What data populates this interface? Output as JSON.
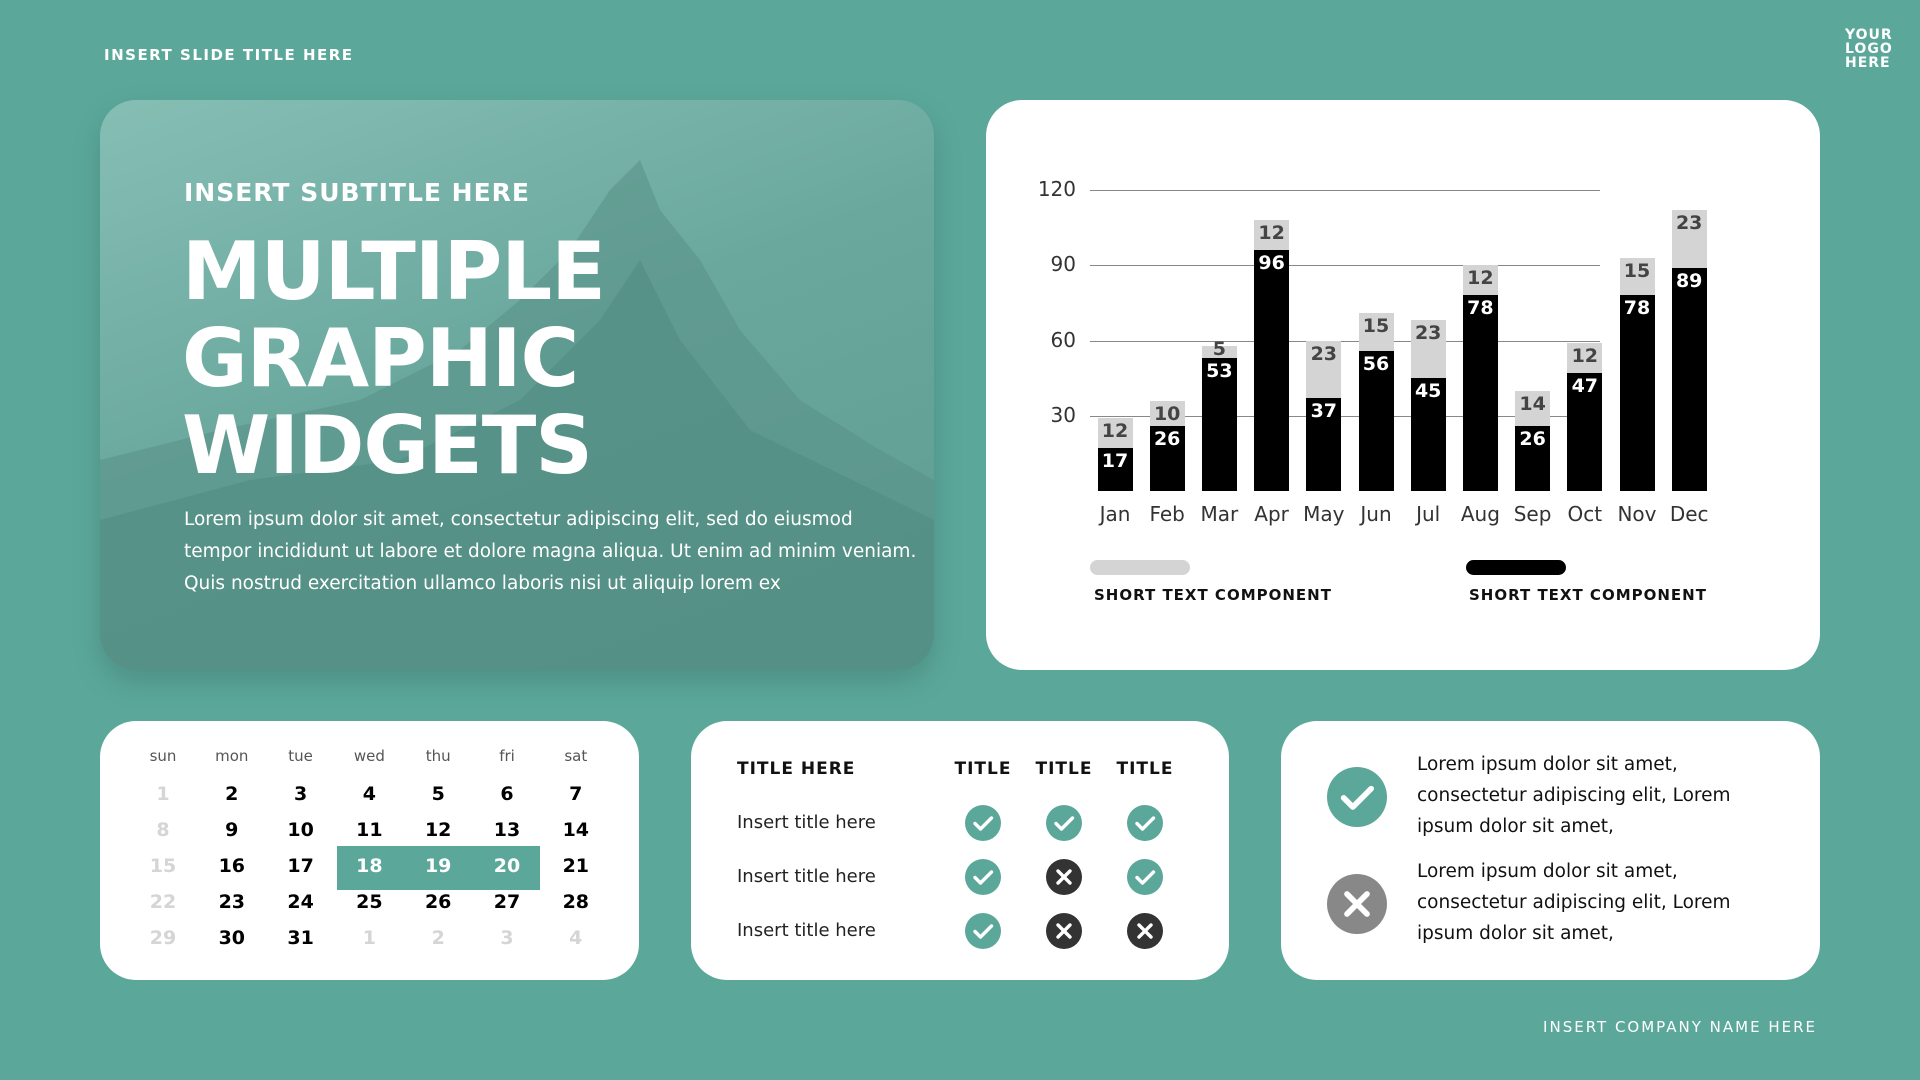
{
  "header": {
    "slide_title": "INSERT SLIDE TITLE HERE",
    "logo": [
      "YOUR",
      "LOGO",
      "HERE"
    ]
  },
  "footer": {
    "company": "INSERT COMPANY NAME HERE"
  },
  "hero": {
    "subtitle": "INSERT SUBTITLE HERE",
    "title_lines": [
      "MULTIPLE",
      "GRAPHIC",
      "WIDGETS"
    ],
    "paragraph_lines": [
      "Lorem ipsum dolor sit amet, consectetur adipiscing elit, sed do eiusmod",
      "tempor incididunt ut labore et dolore magna aliqua. Ut enim ad minim veniam.",
      "Quis nostrud exercitation ullamco laboris nisi ut aliquip lorem ex"
    ]
  },
  "chart_data": {
    "type": "bar",
    "stacked": true,
    "categories": [
      "Jan",
      "Feb",
      "Mar",
      "Apr",
      "May",
      "Jun",
      "Jul",
      "Aug",
      "Sep",
      "Oct",
      "Nov",
      "Dec"
    ],
    "series": [
      {
        "name": "SHORT TEXT COMPONENT",
        "color": "#000000",
        "values": [
          17,
          26,
          53,
          96,
          37,
          56,
          45,
          78,
          26,
          47,
          78,
          89
        ]
      },
      {
        "name": "SHORT TEXT COMPONENT",
        "color": "#d4d4d4",
        "values": [
          12,
          10,
          5,
          12,
          23,
          15,
          23,
          12,
          14,
          12,
          15,
          23
        ]
      }
    ],
    "yticks": [
      30,
      60,
      90,
      120
    ],
    "ylim": [
      0,
      120
    ],
    "grid": true,
    "legend": "bottom"
  },
  "calendar": {
    "days": [
      "sun",
      "mon",
      "tue",
      "wed",
      "thu",
      "fri",
      "sat"
    ],
    "weeks": [
      [
        "1",
        "2",
        "3",
        "4",
        "5",
        "6",
        "7"
      ],
      [
        "8",
        "9",
        "10",
        "11",
        "12",
        "13",
        "14"
      ],
      [
        "15",
        "16",
        "17",
        "18",
        "19",
        "20",
        "21"
      ],
      [
        "22",
        "23",
        "24",
        "25",
        "26",
        "27",
        "28"
      ],
      [
        "29",
        "30",
        "31",
        "1",
        "2",
        "3",
        "4"
      ]
    ],
    "highlighted": [
      "18",
      "19",
      "20"
    ],
    "accent": "#5ba89b"
  },
  "table": {
    "header": "TITLE HERE",
    "columns": [
      "TITLE",
      "TITLE",
      "TITLE"
    ],
    "rows": [
      {
        "label": "Insert title here",
        "values": [
          "check",
          "check",
          "check"
        ]
      },
      {
        "label": "Insert title here",
        "values": [
          "check",
          "cross",
          "check"
        ]
      },
      {
        "label": "Insert title here",
        "values": [
          "check",
          "cross",
          "cross"
        ]
      }
    ],
    "colors": {
      "check": "#5ba89b",
      "cross": "#333333"
    }
  },
  "info": {
    "items": [
      {
        "icon": "check",
        "lines": [
          "Lorem ipsum dolor sit amet,",
          "consectetur adipiscing elit, Lorem",
          "ipsum dolor sit amet,"
        ]
      },
      {
        "icon": "cross",
        "lines": [
          "Lorem ipsum dolor sit amet,",
          "consectetur adipiscing elit, Lorem",
          "ipsum dolor sit amet,"
        ]
      }
    ],
    "colors": {
      "check": "#5ba89b",
      "cross": "#888888"
    }
  }
}
